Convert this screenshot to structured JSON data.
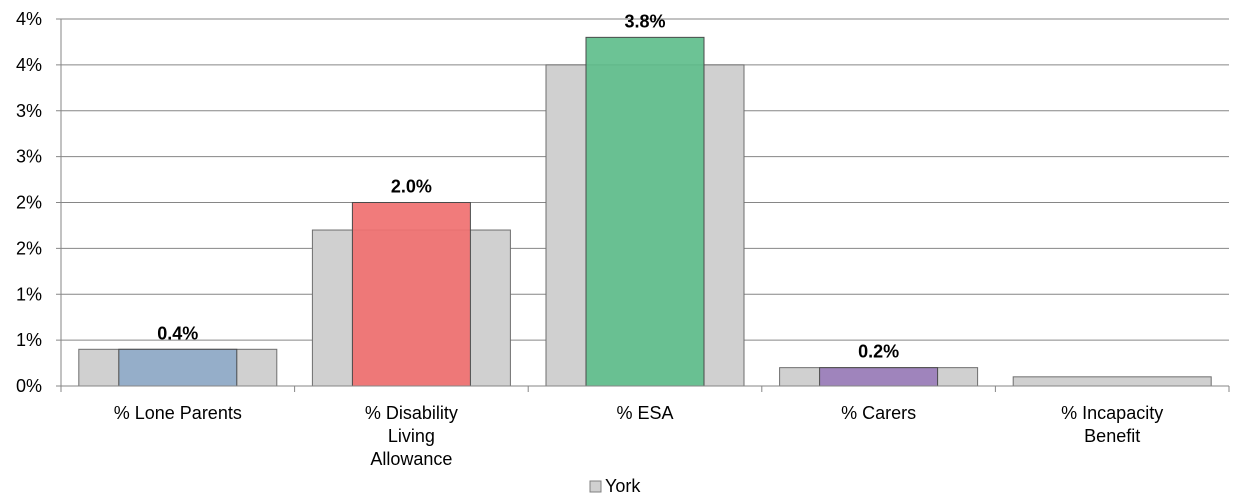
{
  "chart_data": {
    "type": "bar",
    "title": "",
    "xlabel": "",
    "ylabel": "",
    "categories": [
      "% Lone Parents",
      "% Disability Living Allowance",
      "% ESA",
      "% Carers",
      "% Incapacity Benefit"
    ],
    "category_lines": [
      [
        "% Lone Parents"
      ],
      [
        "% Disability",
        "Living",
        "Allowance"
      ],
      [
        "% ESA"
      ],
      [
        "% Carers"
      ],
      [
        "% Incapacity",
        "Benefit"
      ]
    ],
    "ylim": [
      0,
      4.0
    ],
    "y_ticks": [
      0,
      0.5,
      1.0,
      1.5,
      2.0,
      2.5,
      3.0,
      3.5,
      4.0
    ],
    "y_tick_labels": [
      "0%",
      "1%",
      "1%",
      "2%",
      "2%",
      "3%",
      "3%",
      "4%",
      "4%"
    ],
    "grid": true,
    "legend_position": "bottom",
    "series": [
      {
        "name": "York",
        "role": "background",
        "color": "#d0d0d0",
        "values": [
          0.4,
          1.7,
          3.5,
          0.2,
          0.1
        ]
      },
      {
        "name": "",
        "role": "foreground",
        "values": [
          0.4,
          2.0,
          3.8,
          0.2,
          0
        ],
        "colors": [
          "#8faac8",
          "#f07070",
          "#60be8c",
          "#9a7dba",
          "#d0d0d0"
        ],
        "data_labels": [
          "0.4%",
          "2.0%",
          "3.8%",
          "0.2%",
          ""
        ]
      }
    ]
  },
  "legend": {
    "label": "York"
  }
}
